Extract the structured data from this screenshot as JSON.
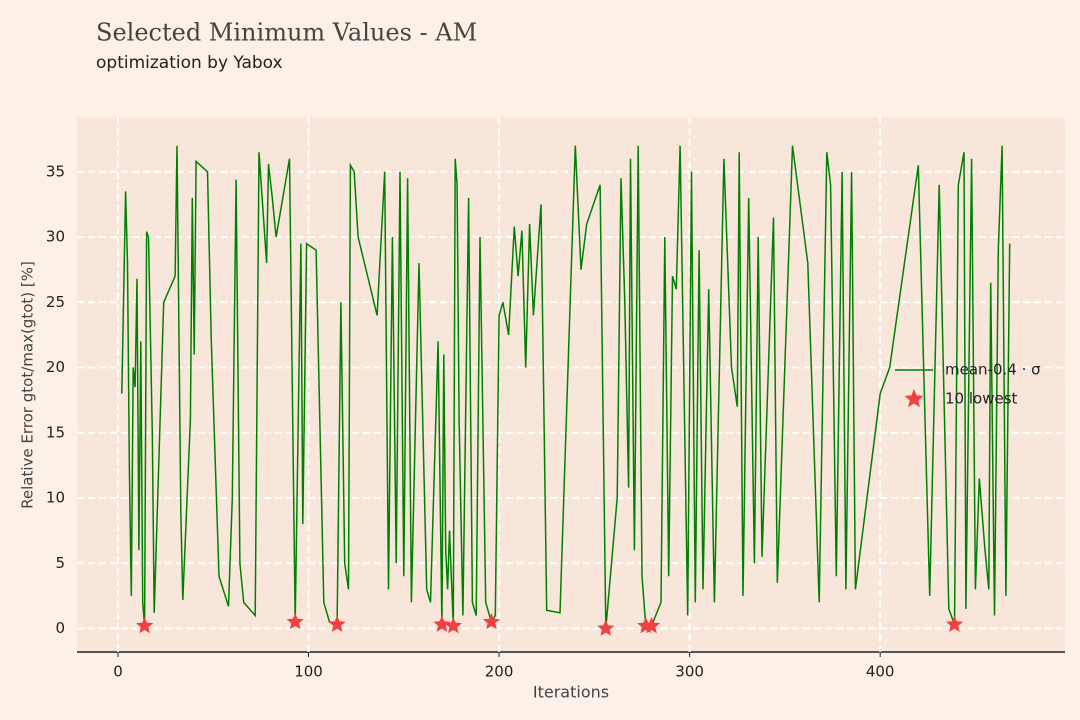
{
  "chart_data": {
    "type": "line",
    "title": "Selected Minimum Values - AM",
    "subtitle": "optimization by Yabox",
    "x_label": "Iterations",
    "y_label": "Relative Error gtot/max(gtot) [%]",
    "xlim": [
      -21.5,
      497
    ],
    "ylim": [
      -1.8,
      39.2
    ],
    "xticks": [
      0,
      100,
      200,
      300,
      400
    ],
    "yticks": [
      0,
      5,
      10,
      15,
      20,
      25,
      30,
      35
    ],
    "grid": true,
    "legend": "right",
    "series": [
      {
        "name": "mean-0.4 · σ",
        "type": "line",
        "color": "#008000",
        "x": [
          2,
          4,
          5,
          6,
          7,
          8,
          9,
          10,
          11,
          12,
          13,
          14,
          15,
          16,
          18,
          19,
          24,
          30,
          31,
          33,
          34,
          38,
          39,
          40,
          41,
          47,
          49,
          53,
          58,
          60,
          62,
          64,
          66,
          72,
          74,
          78,
          79,
          81,
          83,
          90,
          93,
          96,
          97,
          99,
          101,
          104,
          108,
          111,
          115,
          117,
          119,
          121,
          122,
          124,
          126,
          136,
          140,
          142,
          144,
          146,
          148,
          150,
          152,
          154,
          158,
          162,
          164,
          168,
          170,
          171,
          172,
          173,
          174,
          176,
          177,
          178,
          179,
          181,
          184,
          186,
          188,
          190,
          193,
          196,
          198,
          200,
          202,
          205,
          208,
          210,
          212,
          214,
          216,
          218,
          222,
          225,
          232,
          240,
          243,
          246,
          253,
          256,
          262,
          264,
          266,
          268,
          269,
          271,
          273,
          275,
          277,
          280,
          285,
          287,
          289,
          291,
          293,
          295,
          299,
          301,
          303,
          305,
          307,
          310,
          313,
          318,
          322,
          325,
          326,
          328,
          331,
          334,
          336,
          338,
          344,
          346,
          354,
          362,
          368,
          372,
          374,
          377,
          380,
          382,
          385,
          387,
          400,
          405,
          420,
          426,
          431,
          436,
          439,
          441,
          444,
          445,
          448,
          450,
          452,
          455,
          457,
          458,
          460,
          462,
          464,
          466,
          468
        ],
        "values": [
          18,
          33.5,
          28,
          12,
          2.5,
          20,
          18.5,
          26.8,
          6,
          22,
          2,
          0.2,
          30.4,
          30,
          15,
          1.2,
          25,
          27,
          37,
          9,
          2.2,
          16,
          33,
          21,
          35.8,
          35,
          22,
          4,
          1.7,
          10,
          34.4,
          5,
          2,
          1,
          36.5,
          28,
          35.6,
          33,
          30,
          36,
          0.5,
          29.5,
          8,
          29.5,
          29.3,
          29,
          2,
          0.5,
          0.3,
          25,
          5,
          3,
          35.5,
          35,
          30,
          24,
          35,
          3,
          30,
          5,
          35,
          4,
          34.5,
          2,
          28,
          3,
          2,
          22,
          0.3,
          21,
          6,
          3,
          7.5,
          0.2,
          36,
          34,
          16,
          1,
          33,
          2,
          1,
          30,
          2,
          0.5,
          1,
          24,
          25,
          22.5,
          30.8,
          27,
          30.5,
          20,
          31,
          24,
          32.5,
          1.4,
          1.2,
          37,
          27.5,
          31,
          34,
          0,
          10,
          34.5,
          25,
          10.8,
          36,
          6,
          37,
          4,
          0.2,
          0.2,
          2,
          30,
          4,
          27,
          26,
          37,
          1,
          35,
          2,
          29,
          3,
          26,
          2,
          36,
          20,
          17,
          36.5,
          2.5,
          33,
          5,
          30,
          5.5,
          31.5,
          3.5,
          37,
          28,
          2,
          36.5,
          34,
          4,
          35,
          3,
          35,
          3,
          18,
          20,
          35.5,
          2.5,
          34,
          1.5,
          0.3,
          34,
          36.5,
          1.5,
          36,
          3,
          11.5,
          6,
          3,
          26.5,
          1,
          29,
          37,
          2.5,
          29.5
        ]
      },
      {
        "name": "10 lowest",
        "type": "scatter",
        "color": "#f04040",
        "x": [
          14,
          93,
          115,
          170,
          176,
          196,
          256,
          277,
          280,
          439
        ],
        "values": [
          0.2,
          0.5,
          0.3,
          0.3,
          0.2,
          0.5,
          0.0,
          0.2,
          0.2,
          0.3
        ]
      }
    ]
  }
}
